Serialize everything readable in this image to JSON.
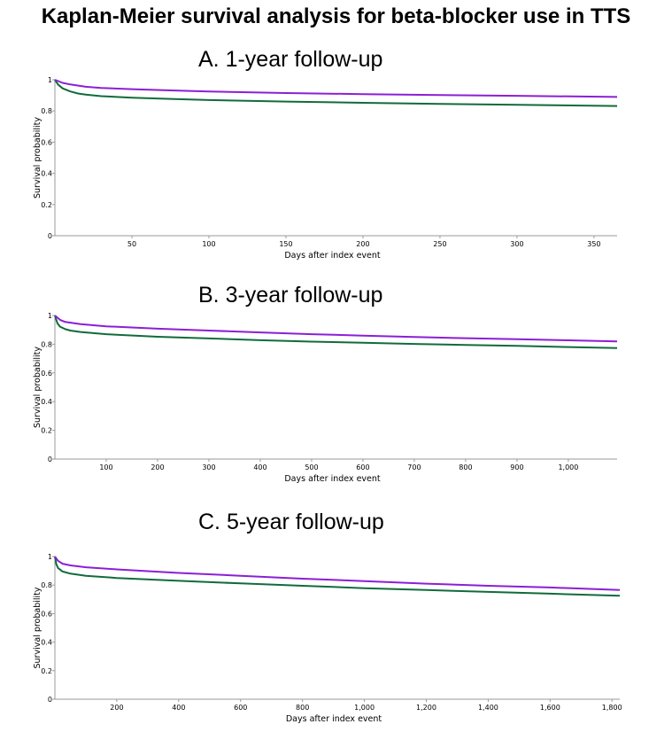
{
  "page_title": "Kaplan-Meier survival analysis for beta-blocker use in TTS",
  "colors": {
    "series_purple": "#8b1fd6",
    "series_green": "#116b3c"
  },
  "chart_data": [
    {
      "type": "line",
      "title": "A. 1-year follow-up",
      "xlabel": "Days after index event",
      "ylabel": "Survival probability",
      "xlim": [
        0,
        365
      ],
      "ylim": [
        0,
        1
      ],
      "xticks": [
        50,
        100,
        150,
        200,
        250,
        300,
        350
      ],
      "xtick_labels": [
        "50",
        "100",
        "150",
        "200",
        "250",
        "300",
        "350"
      ],
      "yticks": [
        0,
        0.2,
        0.4,
        0.6,
        0.8,
        1
      ],
      "ytick_labels": [
        "0",
        "0.2",
        "0.4",
        "0.6",
        "0.8",
        "1"
      ],
      "series": [
        {
          "color": "#8b1fd6",
          "x": [
            0,
            5,
            10,
            20,
            30,
            50,
            75,
            100,
            150,
            200,
            250,
            300,
            365
          ],
          "y": [
            1.0,
            0.98,
            0.97,
            0.955,
            0.948,
            0.94,
            0.932,
            0.925,
            0.915,
            0.908,
            0.902,
            0.897,
            0.89
          ]
        },
        {
          "color": "#116b3c",
          "x": [
            0,
            2,
            5,
            10,
            15,
            20,
            30,
            50,
            75,
            100,
            150,
            200,
            250,
            300,
            365
          ],
          "y": [
            1.0,
            0.97,
            0.945,
            0.925,
            0.912,
            0.905,
            0.895,
            0.885,
            0.877,
            0.87,
            0.86,
            0.852,
            0.845,
            0.84,
            0.832
          ]
        }
      ]
    },
    {
      "type": "line",
      "title": "B. 3-year follow-up",
      "xlabel": "Days after index event",
      "ylabel": "Survival probability",
      "xlim": [
        0,
        1095
      ],
      "ylim": [
        0,
        1
      ],
      "xticks": [
        100,
        200,
        300,
        400,
        500,
        600,
        700,
        800,
        900,
        1000
      ],
      "xtick_labels": [
        "100",
        "200",
        "300",
        "400",
        "500",
        "600",
        "700",
        "800",
        "900",
        "1,000"
      ],
      "yticks": [
        0,
        0.2,
        0.4,
        0.6,
        0.8,
        1
      ],
      "ytick_labels": [
        "0",
        "0.2",
        "0.4",
        "0.6",
        "0.8",
        "1"
      ],
      "series": [
        {
          "color": "#8b1fd6",
          "x": [
            0,
            10,
            20,
            50,
            100,
            200,
            300,
            400,
            500,
            600,
            700,
            800,
            900,
            1000,
            1095
          ],
          "y": [
            1.0,
            0.97,
            0.955,
            0.94,
            0.925,
            0.908,
            0.895,
            0.882,
            0.87,
            0.86,
            0.85,
            0.842,
            0.835,
            0.827,
            0.82
          ]
        },
        {
          "color": "#116b3c",
          "x": [
            0,
            5,
            10,
            20,
            30,
            50,
            100,
            200,
            300,
            400,
            500,
            600,
            700,
            800,
            900,
            1000,
            1095
          ],
          "y": [
            1.0,
            0.945,
            0.922,
            0.905,
            0.895,
            0.885,
            0.87,
            0.852,
            0.84,
            0.828,
            0.818,
            0.81,
            0.802,
            0.795,
            0.788,
            0.78,
            0.773
          ]
        }
      ]
    },
    {
      "type": "line",
      "title": "C. 5-year follow-up",
      "xlabel": "Days after index event",
      "ylabel": "Survival probability",
      "xlim": [
        0,
        1825
      ],
      "ylim": [
        0,
        1
      ],
      "xticks": [
        200,
        400,
        600,
        800,
        1000,
        1200,
        1400,
        1600,
        1800
      ],
      "xtick_labels": [
        "200",
        "400",
        "600",
        "800",
        "1,000",
        "1,200",
        "1,400",
        "1,600",
        "1,800"
      ],
      "yticks": [
        0,
        0.2,
        0.4,
        0.6,
        0.8,
        1
      ],
      "ytick_labels": [
        "0",
        "0.2",
        "0.4",
        "0.6",
        "0.8",
        "1"
      ],
      "series": [
        {
          "color": "#8b1fd6",
          "x": [
            0,
            10,
            25,
            50,
            100,
            200,
            400,
            600,
            800,
            1000,
            1200,
            1400,
            1600,
            1825
          ],
          "y": [
            1.0,
            0.97,
            0.95,
            0.938,
            0.925,
            0.91,
            0.885,
            0.865,
            0.845,
            0.828,
            0.81,
            0.795,
            0.783,
            0.765
          ]
        },
        {
          "color": "#116b3c",
          "x": [
            0,
            5,
            10,
            25,
            50,
            100,
            200,
            400,
            600,
            800,
            1000,
            1200,
            1400,
            1600,
            1825
          ],
          "y": [
            1.0,
            0.945,
            0.92,
            0.895,
            0.88,
            0.865,
            0.85,
            0.83,
            0.812,
            0.795,
            0.778,
            0.765,
            0.752,
            0.74,
            0.725
          ]
        }
      ]
    }
  ]
}
